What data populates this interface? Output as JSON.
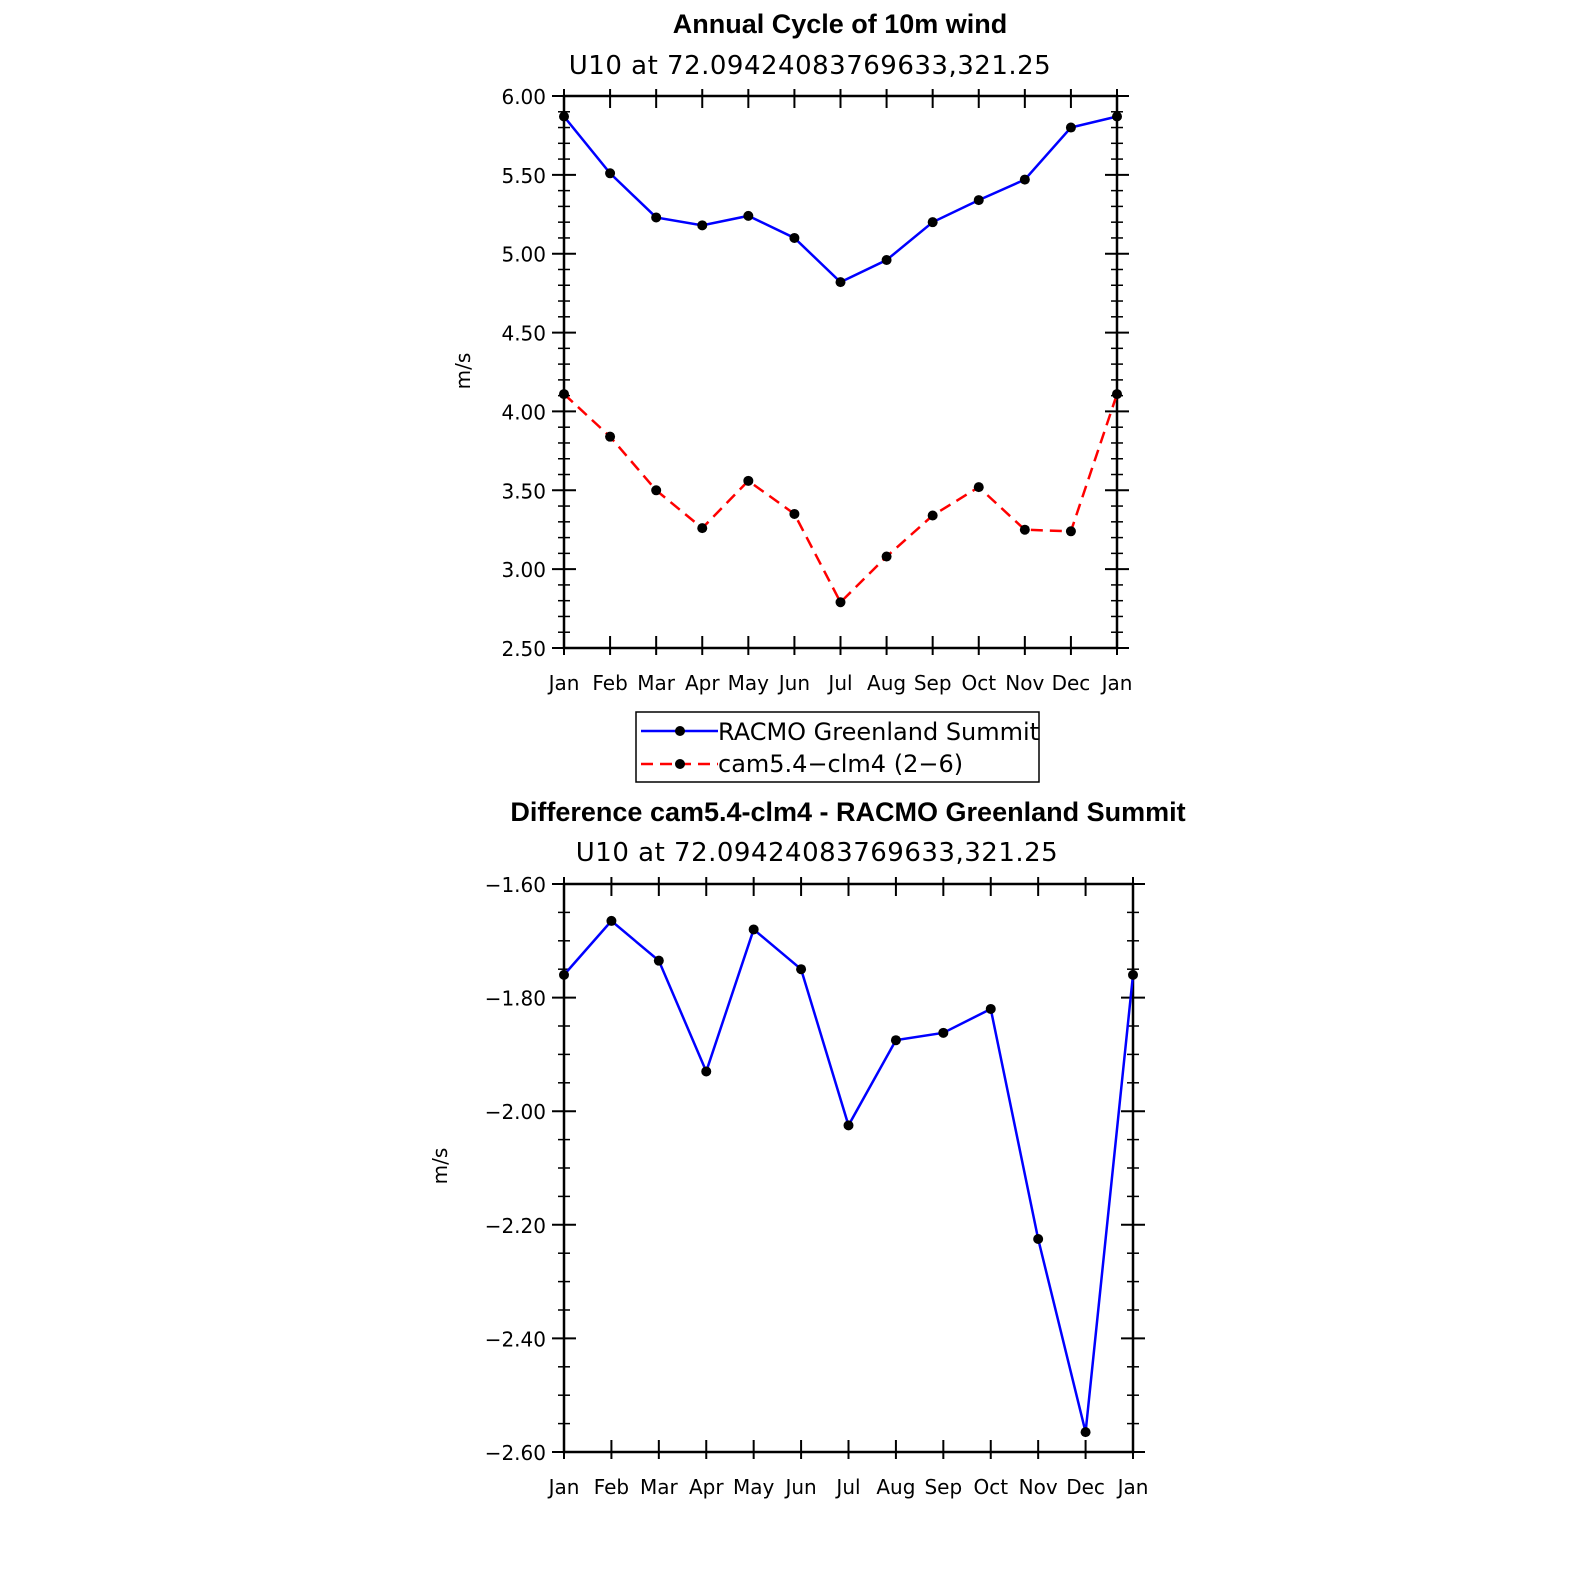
{
  "chart_data": [
    {
      "type": "line",
      "title": "Annual Cycle of 10m wind",
      "subtitle": "U10  at  72.09424083769633,321.25",
      "xlabel": "",
      "ylabel": "m/s",
      "categories": [
        "Jan",
        "Feb",
        "Mar",
        "Apr",
        "May",
        "Jun",
        "Jul",
        "Aug",
        "Sep",
        "Oct",
        "Nov",
        "Dec",
        "Jan"
      ],
      "ylim": [
        2.5,
        6.0
      ],
      "yticks": [
        "2.50",
        "3.00",
        "3.50",
        "4.00",
        "4.50",
        "5.00",
        "5.50",
        "6.00"
      ],
      "grid": false,
      "legend_position": "below",
      "series": [
        {
          "name": "RACMO Greenland Summit",
          "color": "#0000ff",
          "dash": "solid",
          "values": [
            5.87,
            5.51,
            5.23,
            5.18,
            5.24,
            5.1,
            4.82,
            4.96,
            5.2,
            5.34,
            5.47,
            5.8,
            5.87
          ]
        },
        {
          "name": "cam5.4−clm4 (2−6)",
          "color": "#ff0000",
          "dash": "dashed",
          "values": [
            4.11,
            3.84,
            3.5,
            3.26,
            3.56,
            3.35,
            2.79,
            3.08,
            3.34,
            3.52,
            3.25,
            3.24,
            4.11
          ]
        }
      ]
    },
    {
      "type": "line",
      "title": "Difference cam5.4-clm4 - RACMO Greenland Summit",
      "subtitle": "U10  at  72.09424083769633,321.25",
      "xlabel": "",
      "ylabel": "m/s",
      "categories": [
        "Jan",
        "Feb",
        "Mar",
        "Apr",
        "May",
        "Jun",
        "Jul",
        "Aug",
        "Sep",
        "Oct",
        "Nov",
        "Dec",
        "Jan"
      ],
      "ylim": [
        -2.6,
        -1.6
      ],
      "yticks": [
        "−2.60",
        "−2.40",
        "−2.20",
        "−2.00",
        "−1.80",
        "−1.60"
      ],
      "grid": false,
      "series": [
        {
          "name": "Difference",
          "color": "#0000ff",
          "dash": "solid",
          "values": [
            -1.76,
            -1.665,
            -1.735,
            -1.93,
            -1.68,
            -1.75,
            -2.025,
            -1.875,
            -1.862,
            -1.82,
            -2.225,
            -2.565,
            -1.76
          ]
        }
      ]
    }
  ]
}
